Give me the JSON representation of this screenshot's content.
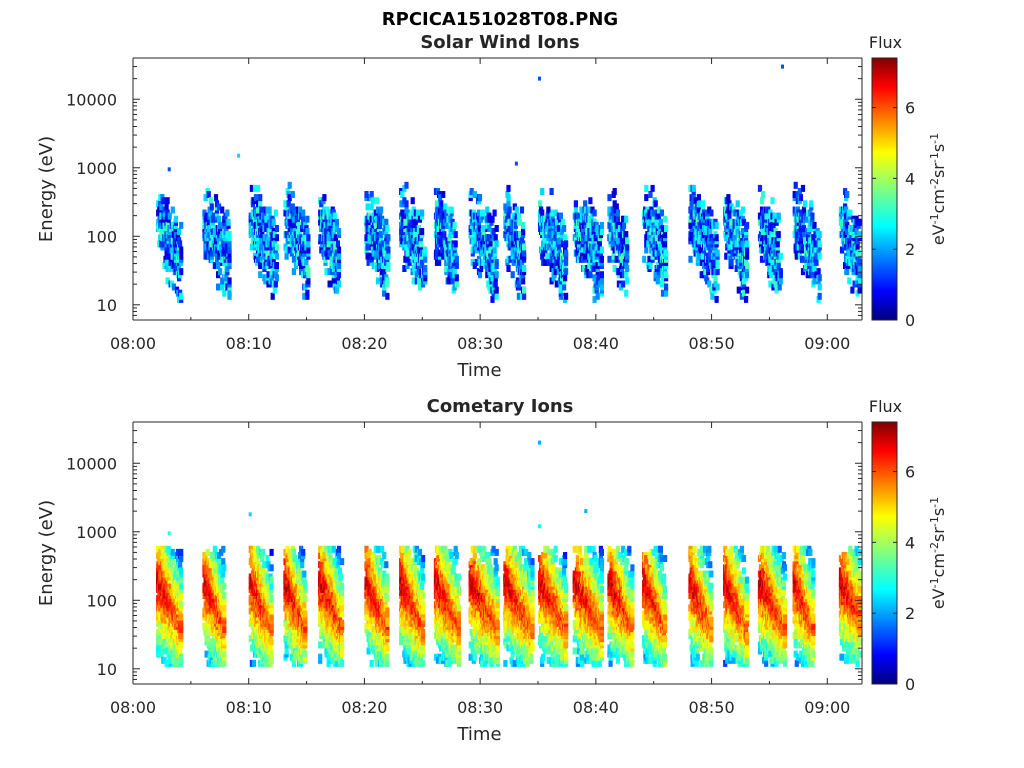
{
  "figure": {
    "title": "RPCICA151028T08.PNG"
  },
  "panels": [
    {
      "title": "Solar Wind Ions",
      "xlabel": "Time",
      "ylabel": "Energy (eV)",
      "colorbar": {
        "label": "Flux",
        "unit_text": "eV-1cm-2sr-1s-1",
        "ticks": [
          "0",
          "2",
          "4",
          "6"
        ]
      }
    },
    {
      "title": "Cometary Ions",
      "xlabel": "Time",
      "ylabel": "Energy (eV)",
      "colorbar": {
        "label": "Flux",
        "unit_text": "eV-1cm-2sr-1s-1",
        "ticks": [
          "0",
          "2",
          "4",
          "6"
        ]
      }
    }
  ],
  "chart_data": [
    {
      "type": "heatmap",
      "title": "Solar Wind Ions",
      "xlabel": "Time",
      "ylabel": "Energy (eV)",
      "x_ticks": [
        "08:00",
        "08:10",
        "08:20",
        "08:30",
        "08:40",
        "08:50",
        "09:00"
      ],
      "xlim": [
        "08:00",
        "09:03"
      ],
      "y_scale": "log",
      "y_ticks": [
        "10",
        "100",
        "1000",
        "10000"
      ],
      "ylim": [
        6,
        40000
      ],
      "colorbar": {
        "label": "Flux",
        "ticks": [
          0,
          2,
          4,
          6
        ],
        "range": [
          0,
          7.4
        ],
        "colormap": "jet"
      },
      "burst_start_times": [
        "08:02",
        "08:06",
        "08:10",
        "08:13",
        "08:16",
        "08:20",
        "08:23",
        "08:26",
        "08:29",
        "08:32",
        "08:35",
        "08:38",
        "08:41",
        "08:44",
        "08:48",
        "08:51",
        "08:54",
        "08:57",
        "09:01"
      ],
      "typical_flux_range": [
        0.5,
        3.5
      ],
      "isolated_points": [
        {
          "time": "08:35",
          "energy": 20000,
          "flux": 1.5
        },
        {
          "time": "08:56",
          "energy": 30000,
          "flux": 1.5
        },
        {
          "time": "08:09",
          "energy": 1500,
          "flux": 2.5
        },
        {
          "time": "08:33",
          "energy": 1150,
          "flux": 1.5
        },
        {
          "time": "08:03",
          "energy": 950,
          "flux": 1.5
        }
      ]
    },
    {
      "type": "heatmap",
      "title": "Cometary Ions",
      "xlabel": "Time",
      "ylabel": "Energy (eV)",
      "x_ticks": [
        "08:00",
        "08:10",
        "08:20",
        "08:30",
        "08:40",
        "08:50",
        "09:00"
      ],
      "xlim": [
        "08:00",
        "09:03"
      ],
      "y_scale": "log",
      "y_ticks": [
        "10",
        "100",
        "1000",
        "10000"
      ],
      "ylim": [
        6,
        40000
      ],
      "colorbar": {
        "label": "Flux",
        "ticks": [
          0,
          2,
          4,
          6
        ],
        "range": [
          0,
          7.4
        ],
        "colormap": "jet"
      },
      "burst_start_times": [
        "08:02",
        "08:06",
        "08:10",
        "08:13",
        "08:16",
        "08:20",
        "08:23",
        "08:26",
        "08:29",
        "08:32",
        "08:35",
        "08:38",
        "08:41",
        "08:44",
        "08:48",
        "08:51",
        "08:54",
        "08:57",
        "09:01"
      ],
      "typical_flux_range": [
        2.5,
        7.0
      ],
      "isolated_points": [
        {
          "time": "08:35",
          "energy": 20000,
          "flux": 2.2
        },
        {
          "time": "08:39",
          "energy": 2000,
          "flux": 2.2
        },
        {
          "time": "08:10",
          "energy": 1800,
          "flux": 2.5
        },
        {
          "time": "08:35",
          "energy": 1200,
          "flux": 2.8
        },
        {
          "time": "08:03",
          "energy": 950,
          "flux": 3.0
        }
      ]
    }
  ]
}
